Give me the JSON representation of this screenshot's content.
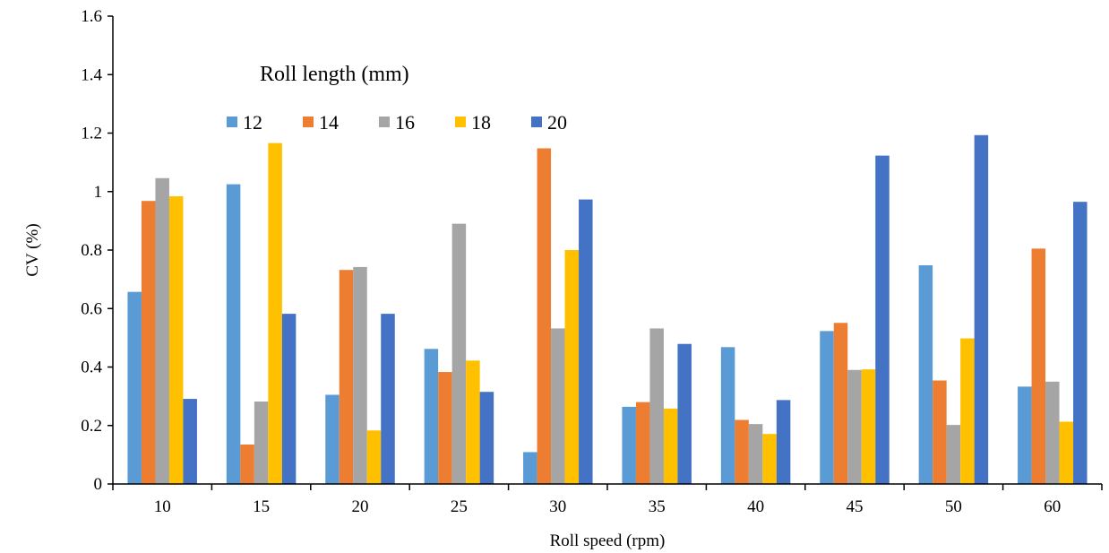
{
  "chart_data": {
    "type": "bar",
    "title": "",
    "xlabel": "Roll speed (rpm)",
    "ylabel": "CV (%)",
    "ylim": [
      0,
      1.6
    ],
    "yticks": [
      "0",
      "0.2",
      "0.4",
      "0.6",
      "0.8",
      "1",
      "1.2",
      "1.4",
      "1.6"
    ],
    "ytick_values": [
      0,
      0.2,
      0.4,
      0.6,
      0.8,
      1.0,
      1.2,
      1.4,
      1.6
    ],
    "categories": [
      "10",
      "15",
      "20",
      "25",
      "30",
      "35",
      "40",
      "45",
      "50",
      "60"
    ],
    "legend_title": "Roll length (mm)",
    "legend_placement": "top-left",
    "grid": false,
    "series": [
      {
        "name": "12",
        "color": "#5B9BD5",
        "values": [
          0.657,
          1.025,
          0.305,
          0.462,
          0.109,
          0.264,
          0.468,
          0.523,
          0.748,
          0.333
        ]
      },
      {
        "name": "14",
        "color": "#ED7D31",
        "values": [
          0.968,
          0.135,
          0.732,
          0.383,
          1.148,
          0.28,
          0.219,
          0.551,
          0.354,
          0.805
        ]
      },
      {
        "name": "16",
        "color": "#A5A5A5",
        "values": [
          1.046,
          0.282,
          0.742,
          0.89,
          0.532,
          0.532,
          0.205,
          0.39,
          0.202,
          0.35
        ]
      },
      {
        "name": "18",
        "color": "#FFC000",
        "values": [
          0.984,
          1.166,
          0.183,
          0.422,
          0.8,
          0.258,
          0.171,
          0.392,
          0.498,
          0.213
        ]
      },
      {
        "name": "20",
        "color": "#4472C4",
        "values": [
          0.291,
          0.582,
          0.582,
          0.315,
          0.973,
          0.479,
          0.287,
          1.123,
          1.193,
          0.965
        ]
      }
    ]
  }
}
